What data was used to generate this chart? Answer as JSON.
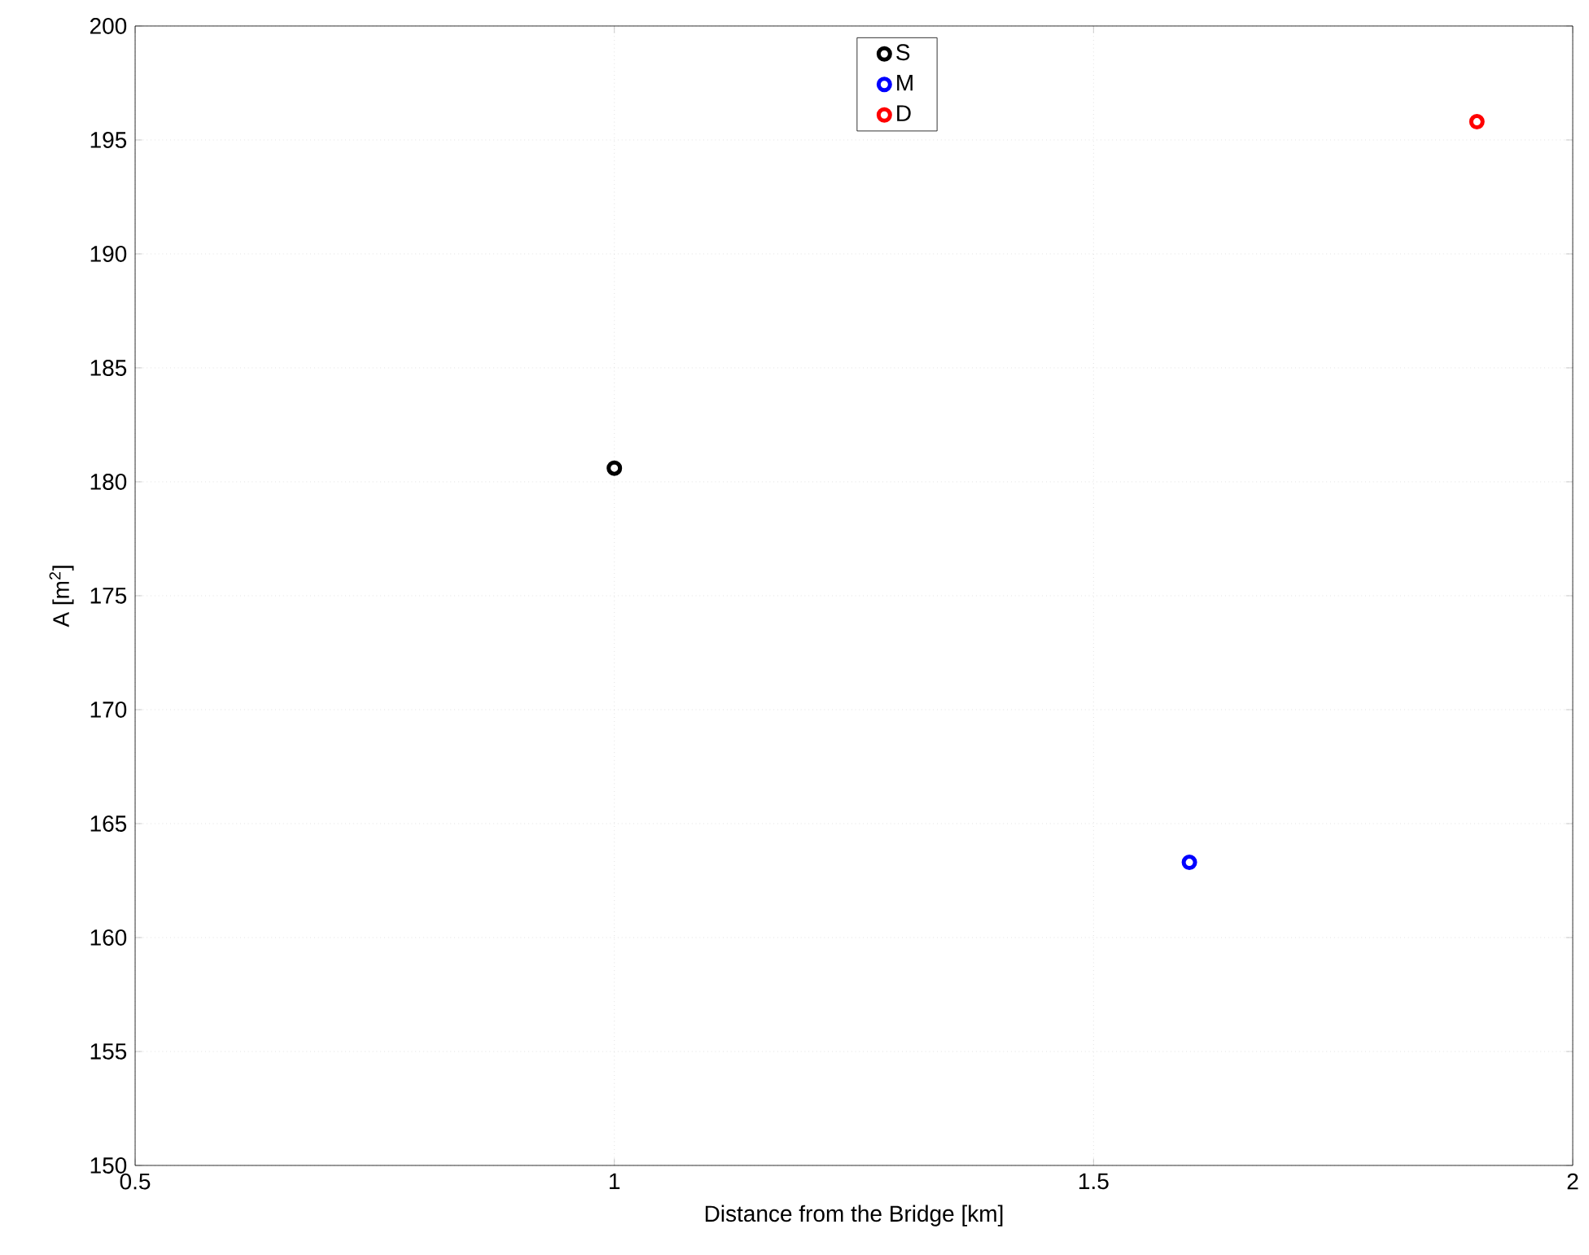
{
  "chart_data": {
    "type": "scatter",
    "xlabel": "Distance from the Bridge [km]",
    "ylabel": "A [m$^{2}$]",
    "xlim": [
      0.5,
      2
    ],
    "xticks": [
      0.5,
      1,
      1.5,
      2
    ],
    "ylim": [
      150,
      200
    ],
    "yticks": [
      150,
      155,
      160,
      165,
      170,
      175,
      180,
      185,
      190,
      195,
      200
    ],
    "grid": true,
    "legend": "top",
    "marker": "circle",
    "series": [
      {
        "name": "S",
        "color": "#000000",
        "x": [
          1
        ],
        "values": [
          180.6
        ]
      },
      {
        "name": "M",
        "color": "#0000ff",
        "x": [
          1.6
        ],
        "values": [
          163.3
        ]
      },
      {
        "name": "D",
        "color": "#ff0000",
        "x": [
          1.9
        ],
        "values": [
          195.8
        ]
      }
    ]
  }
}
